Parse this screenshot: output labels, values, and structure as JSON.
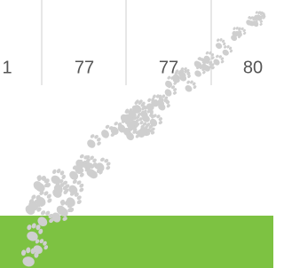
{
  "stats": [
    1,
    77,
    77,
    80
  ]
}
